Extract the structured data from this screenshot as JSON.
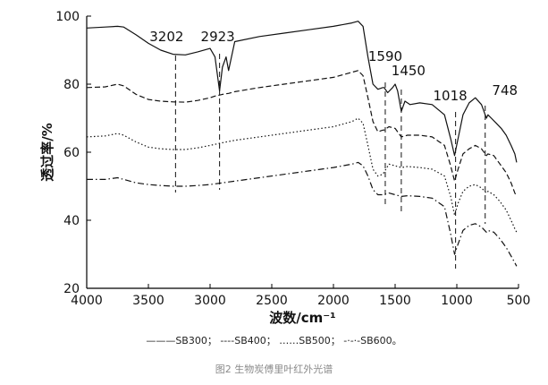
{
  "chart_data": {
    "type": "line",
    "xlabel": "波数/cm⁻¹",
    "ylabel": "透过率/%",
    "xlim": [
      4000,
      500
    ],
    "ylim": [
      20,
      100
    ],
    "x_ticks": [
      "4000",
      "3500",
      "3000",
      "2500",
      "2000",
      "1500",
      "1000",
      "500"
    ],
    "y_ticks": [
      "20",
      "40",
      "60",
      "80",
      "100"
    ],
    "peaks": [
      {
        "label": "3202",
        "x": 3280
      },
      {
        "label": "2923",
        "x": 2923
      },
      {
        "label": "1590",
        "x": 1580
      },
      {
        "label": "1450",
        "x": 1450
      },
      {
        "label": "1018",
        "x": 1010
      },
      {
        "label": "748",
        "x": 770
      }
    ],
    "series": [
      {
        "name": "SB300",
        "style": "solid",
        "x": [
          4000,
          3850,
          3750,
          3700,
          3600,
          3500,
          3400,
          3300,
          3200,
          3100,
          3000,
          2960,
          2923,
          2900,
          2870,
          2850,
          2800,
          2600,
          2400,
          2200,
          2000,
          1850,
          1800,
          1760,
          1720,
          1680,
          1640,
          1600,
          1590,
          1560,
          1520,
          1500,
          1480,
          1450,
          1420,
          1380,
          1300,
          1200,
          1100,
          1050,
          1018,
          990,
          950,
          900,
          850,
          800,
          760,
          748,
          720,
          680,
          640,
          600,
          560,
          530,
          515
        ],
        "y": [
          96.5,
          96.8,
          97.0,
          96.8,
          94.5,
          92.0,
          90.0,
          88.8,
          88.6,
          89.5,
          90.5,
          88.0,
          78.0,
          85.0,
          88.0,
          84.0,
          92.5,
          94.0,
          95.0,
          96.0,
          97.0,
          98.0,
          98.5,
          97.0,
          88.0,
          80.0,
          78.5,
          79.0,
          79.0,
          77.5,
          79.0,
          80.0,
          78.0,
          72.0,
          75.0,
          74.0,
          74.5,
          74.0,
          71.0,
          64.0,
          59.0,
          64.0,
          71.0,
          74.5,
          76.0,
          74.0,
          70.0,
          71.0,
          70.0,
          68.5,
          67.0,
          65.0,
          62.0,
          59.5,
          57.0
        ]
      },
      {
        "name": "SB400",
        "style": "dashed",
        "x": [
          4000,
          3850,
          3750,
          3700,
          3600,
          3500,
          3400,
          3300,
          3200,
          3100,
          3000,
          2960,
          2923,
          2900,
          2850,
          2800,
          2600,
          2400,
          2200,
          2000,
          1850,
          1800,
          1760,
          1720,
          1680,
          1640,
          1600,
          1590,
          1550,
          1500,
          1450,
          1400,
          1300,
          1200,
          1100,
          1050,
          1018,
          990,
          950,
          900,
          850,
          800,
          760,
          748,
          700,
          650,
          600,
          560,
          530,
          515
        ],
        "y": [
          79.0,
          79.2,
          80.0,
          79.5,
          77.0,
          75.5,
          75.0,
          74.8,
          74.7,
          75.2,
          76.0,
          76.5,
          76.8,
          77.0,
          77.3,
          77.8,
          79.0,
          80.0,
          81.0,
          82.0,
          83.5,
          84.0,
          82.5,
          76.0,
          69.0,
          66.0,
          66.5,
          66.5,
          67.5,
          67.0,
          64.5,
          65.0,
          65.0,
          64.5,
          62.0,
          56.0,
          51.5,
          55.0,
          59.5,
          61.0,
          62.0,
          61.0,
          59.0,
          59.5,
          59.0,
          56.5,
          54.0,
          51.0,
          48.0,
          47.0
        ]
      },
      {
        "name": "SB500",
        "style": "dotted",
        "x": [
          4000,
          3850,
          3750,
          3700,
          3600,
          3500,
          3400,
          3300,
          3200,
          3100,
          3000,
          2900,
          2800,
          2600,
          2400,
          2200,
          2000,
          1850,
          1800,
          1760,
          1720,
          1680,
          1640,
          1600,
          1550,
          1500,
          1450,
          1400,
          1300,
          1200,
          1100,
          1050,
          1018,
          990,
          950,
          900,
          850,
          800,
          760,
          748,
          700,
          650,
          600,
          560,
          530,
          515
        ],
        "y": [
          64.5,
          64.8,
          65.5,
          65.0,
          63.0,
          61.5,
          61.0,
          60.8,
          60.8,
          61.3,
          62.0,
          62.8,
          63.5,
          64.5,
          65.5,
          66.5,
          67.5,
          69.0,
          70.0,
          68.5,
          62.0,
          55.0,
          53.0,
          53.5,
          56.5,
          56.0,
          55.5,
          55.8,
          55.5,
          55.0,
          53.0,
          47.0,
          41.5,
          45.0,
          48.5,
          50.0,
          50.5,
          49.5,
          48.0,
          48.5,
          47.5,
          45.5,
          43.0,
          40.0,
          37.5,
          36.5
        ]
      },
      {
        "name": "SB600",
        "style": "dashdot",
        "x": [
          4000,
          3850,
          3750,
          3700,
          3600,
          3500,
          3400,
          3300,
          3200,
          3100,
          3000,
          2900,
          2800,
          2600,
          2400,
          2200,
          2000,
          1850,
          1800,
          1760,
          1720,
          1680,
          1640,
          1600,
          1550,
          1500,
          1450,
          1400,
          1300,
          1200,
          1100,
          1050,
          1018,
          990,
          950,
          900,
          850,
          800,
          760,
          748,
          700,
          650,
          600,
          560,
          530,
          515
        ],
        "y": [
          52.0,
          52.0,
          52.5,
          52.0,
          51.0,
          50.5,
          50.2,
          50.0,
          50.0,
          50.2,
          50.5,
          51.0,
          51.5,
          52.5,
          53.5,
          54.5,
          55.5,
          56.5,
          57.0,
          56.0,
          53.0,
          49.0,
          47.5,
          47.5,
          48.0,
          47.5,
          47.0,
          47.2,
          47.0,
          46.5,
          44.0,
          36.0,
          30.0,
          33.0,
          37.0,
          38.5,
          39.0,
          38.0,
          36.5,
          37.0,
          36.5,
          34.5,
          32.0,
          29.5,
          27.5,
          26.5
        ]
      }
    ]
  },
  "legend_text": "———SB300；  ----SB400；  ……SB500；  -·-·-SB600。",
  "caption": "图2  生物炭傅里叶红外光谱"
}
